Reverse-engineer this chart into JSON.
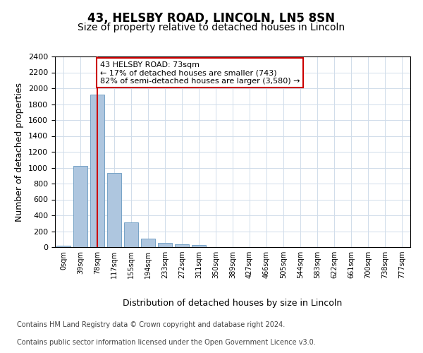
{
  "title1": "43, HELSBY ROAD, LINCOLN, LN5 8SN",
  "title2": "Size of property relative to detached houses in Lincoln",
  "xlabel": "Distribution of detached houses by size in Lincoln",
  "ylabel": "Number of detached properties",
  "annotation_title": "43 HELSBY ROAD: 73sqm",
  "annotation_line2": "← 17% of detached houses are smaller (743)",
  "annotation_line3": "82% of semi-detached houses are larger (3,580) →",
  "footer1": "Contains HM Land Registry data © Crown copyright and database right 2024.",
  "footer2": "Contains public sector information licensed under the Open Government Licence v3.0.",
  "categories": [
    "0sqm",
    "39sqm",
    "78sqm",
    "117sqm",
    "155sqm",
    "194sqm",
    "233sqm",
    "272sqm",
    "311sqm",
    "350sqm",
    "389sqm",
    "427sqm",
    "466sqm",
    "505sqm",
    "544sqm",
    "583sqm",
    "622sqm",
    "661sqm",
    "700sqm",
    "738sqm",
    "777sqm"
  ],
  "values": [
    20,
    1020,
    1920,
    930,
    315,
    110,
    55,
    40,
    25,
    0,
    0,
    0,
    0,
    0,
    0,
    0,
    0,
    0,
    0,
    0,
    0
  ],
  "bar_color": "#aec6df",
  "bar_edge_color": "#6899c0",
  "grid_color": "#d0dcea",
  "vline_bin": 2,
  "vline_color": "#cc0000",
  "annotation_box_color": "#cc0000",
  "ylim": [
    0,
    2400
  ],
  "yticks": [
    0,
    200,
    400,
    600,
    800,
    1000,
    1200,
    1400,
    1600,
    1800,
    2000,
    2200,
    2400
  ],
  "background_color": "#ffffff",
  "title1_fontsize": 12,
  "title2_fontsize": 10,
  "ylabel_fontsize": 9,
  "xlabel_fontsize": 9,
  "tick_fontsize": 8,
  "ann_fontsize": 8,
  "footer_fontsize": 7
}
